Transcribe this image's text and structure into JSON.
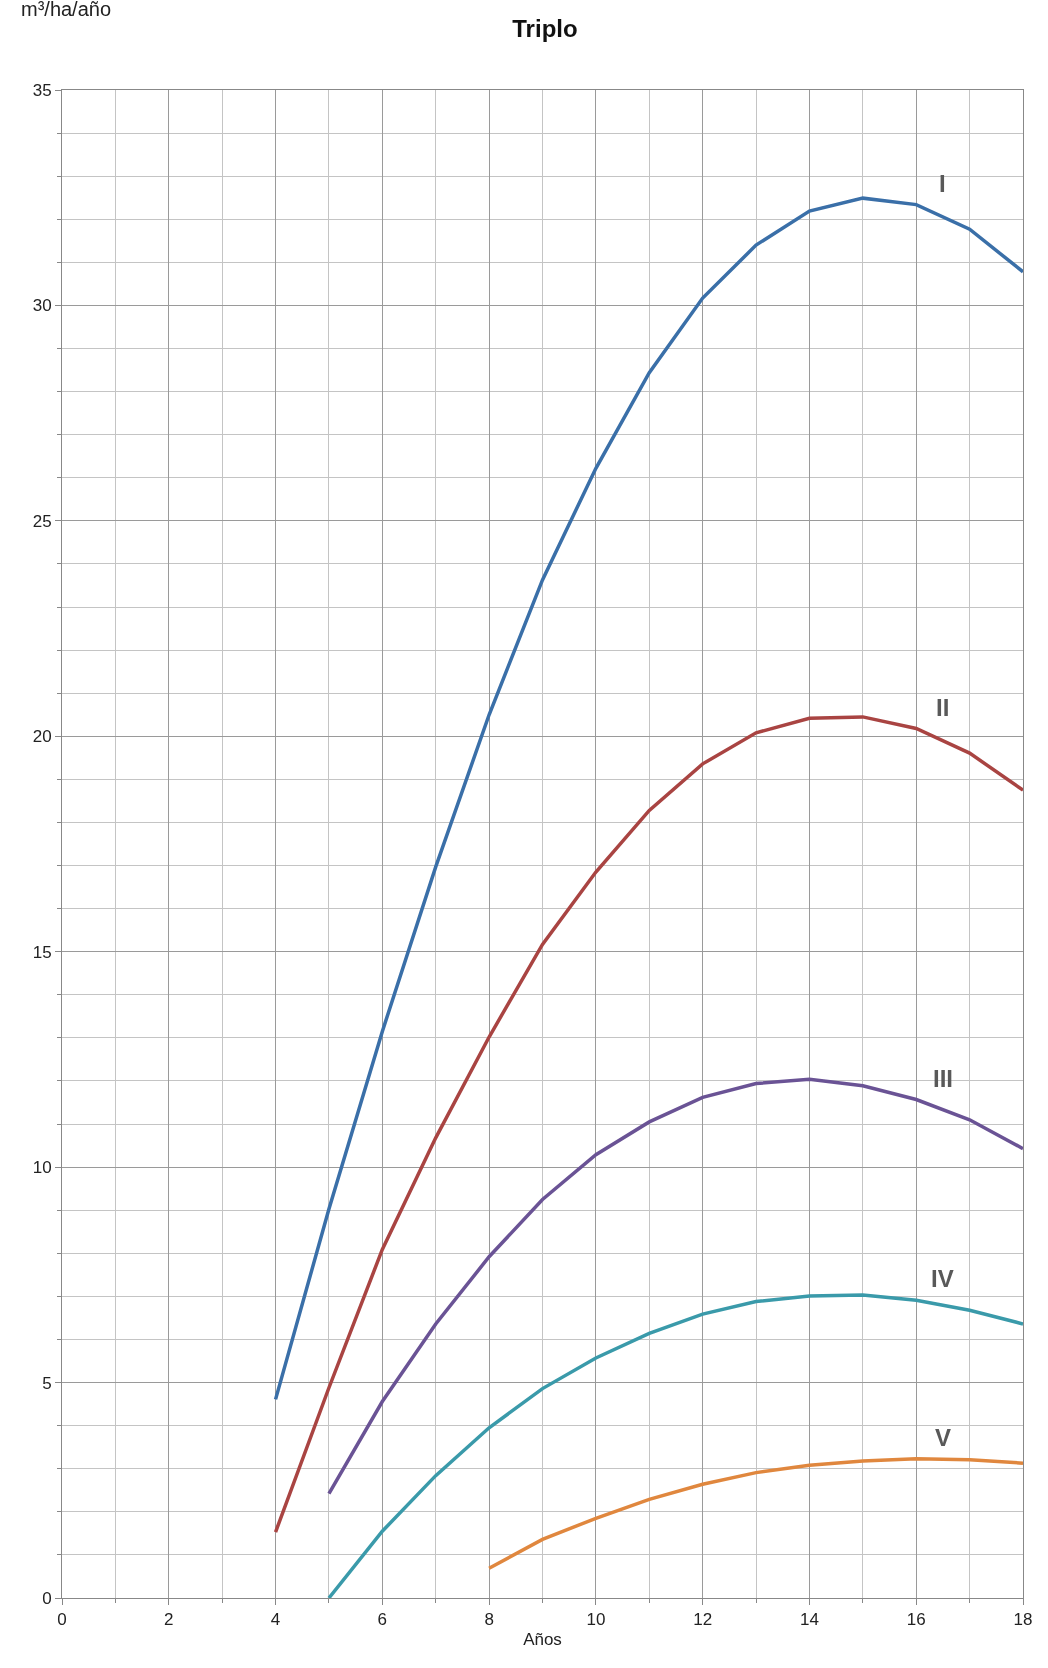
{
  "chart_data": {
    "type": "line",
    "title": "Triplo",
    "xlabel": "Años",
    "ylabel": "m³/ha/año",
    "xlim": [
      0,
      18
    ],
    "xticks": [
      0,
      2,
      4,
      6,
      8,
      10,
      12,
      14,
      16,
      18
    ],
    "ylim": [
      0,
      35
    ],
    "yticks": [
      0,
      5,
      10,
      15,
      20,
      25,
      30,
      35
    ],
    "grid": true,
    "legend": false,
    "marker": "none",
    "line_style": "solid",
    "series": [
      {
        "name": "I",
        "color": "#3a6fa8",
        "x": [
          4,
          5,
          6,
          7,
          8,
          9,
          10,
          11,
          12,
          13,
          14,
          15,
          16,
          17,
          18
        ],
        "values": [
          4.61,
          9.03,
          13.15,
          16.97,
          20.5,
          23.63,
          26.22,
          28.44,
          30.17,
          31.4,
          32.19,
          32.49,
          32.34,
          31.77,
          30.78
        ]
      },
      {
        "name": "II",
        "color": "#a94442",
        "x": [
          4,
          5,
          6,
          7,
          8,
          9,
          10,
          11,
          12,
          13,
          14,
          15,
          16,
          17,
          18
        ],
        "values": [
          1.53,
          4.88,
          8.09,
          10.68,
          13.02,
          15.17,
          16.85,
          18.28,
          19.36,
          20.08,
          20.42,
          20.45,
          20.18,
          19.61,
          18.75
        ]
      },
      {
        "name": "III",
        "color": "#6a5395",
        "x": [
          5,
          6,
          7,
          8,
          9,
          10,
          11,
          12,
          13,
          14,
          15,
          16,
          17,
          18
        ],
        "values": [
          2.42,
          4.56,
          6.36,
          7.92,
          9.25,
          10.29,
          11.05,
          11.62,
          11.94,
          12.04,
          11.89,
          11.57,
          11.1,
          10.43
        ]
      },
      {
        "name": "IV",
        "color": "#3a9aaa",
        "x": [
          5,
          6,
          7,
          8,
          9,
          10,
          11,
          12,
          13,
          14,
          15,
          16,
          17,
          18
        ],
        "values": [
          0,
          1.55,
          2.84,
          3.95,
          4.86,
          5.57,
          6.14,
          6.59,
          6.88,
          7.01,
          7.03,
          6.91,
          6.68,
          6.36
        ]
      },
      {
        "name": "V",
        "color": "#e0873e",
        "x": [
          8,
          9,
          10,
          11,
          12,
          13,
          14,
          15,
          16,
          17,
          18
        ],
        "values": [
          0.69,
          1.36,
          1.85,
          2.29,
          2.64,
          2.91,
          3.08,
          3.18,
          3.23,
          3.21,
          3.13
        ]
      }
    ]
  }
}
